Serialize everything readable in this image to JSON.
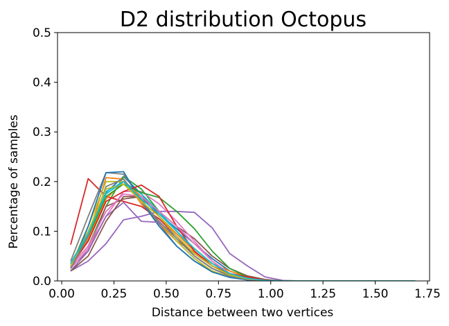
{
  "chart_data": {
    "type": "line",
    "title": "D2 distribution Octopus",
    "xlabel": "Distance between two vertices",
    "ylabel": "Percentage of samples",
    "xlim": [
      -0.02,
      1.76
    ],
    "ylim": [
      0,
      0.5
    ],
    "xticks": [
      0.0,
      0.25,
      0.5,
      0.75,
      1.0,
      1.25,
      1.5,
      1.75
    ],
    "xtick_labels": [
      "0.00",
      "0.25",
      "0.50",
      "0.75",
      "1.00",
      "1.25",
      "1.50",
      "1.75"
    ],
    "yticks": [
      0.0,
      0.1,
      0.2,
      0.3,
      0.4,
      0.5
    ],
    "ytick_labels": [
      "0.0",
      "0.1",
      "0.2",
      "0.3",
      "0.4",
      "0.5"
    ],
    "grid": false,
    "x": [
      0.043,
      0.127,
      0.212,
      0.296,
      0.381,
      0.466,
      0.55,
      0.635,
      0.72,
      0.804,
      0.889,
      0.973,
      1.058,
      1.142,
      1.227,
      1.312,
      1.396,
      1.481,
      1.565,
      1.65,
      1.692
    ],
    "series": [
      {
        "color": "#1f77b4",
        "values": [
          0.035,
          0.1,
          0.178,
          0.21,
          0.175,
          0.135,
          0.105,
          0.075,
          0.045,
          0.02,
          0.008,
          0.002,
          0,
          0,
          0,
          0,
          0,
          0,
          0,
          0,
          0
        ]
      },
      {
        "color": "#ff7f0e",
        "values": [
          0.025,
          0.09,
          0.208,
          0.205,
          0.155,
          0.115,
          0.08,
          0.058,
          0.035,
          0.02,
          0.008,
          0.002,
          0,
          0,
          0,
          0,
          0,
          0,
          0,
          0,
          0
        ]
      },
      {
        "color": "#2ca02c",
        "values": [
          0.03,
          0.07,
          0.15,
          0.21,
          0.185,
          0.14,
          0.1,
          0.065,
          0.035,
          0.015,
          0.005,
          0.001,
          0,
          0,
          0,
          0,
          0,
          0,
          0,
          0,
          0
        ]
      },
      {
        "color": "#d62728",
        "values": [
          0.073,
          0.206,
          0.17,
          0.16,
          0.15,
          0.125,
          0.09,
          0.055,
          0.03,
          0.012,
          0.004,
          0.001,
          0,
          0,
          0,
          0,
          0,
          0,
          0,
          0,
          0
        ]
      },
      {
        "color": "#9467bd",
        "values": [
          0.02,
          0.04,
          0.075,
          0.123,
          0.13,
          0.14,
          0.14,
          0.138,
          0.107,
          0.055,
          0.03,
          0.008,
          0.001,
          0,
          0,
          0,
          0,
          0,
          0,
          0,
          0
        ]
      },
      {
        "color": "#8c564b",
        "values": [
          0.028,
          0.06,
          0.15,
          0.165,
          0.17,
          0.14,
          0.11,
          0.085,
          0.05,
          0.025,
          0.01,
          0.003,
          0,
          0,
          0,
          0,
          0,
          0,
          0,
          0,
          0
        ]
      },
      {
        "color": "#e377c2",
        "values": [
          0.025,
          0.065,
          0.13,
          0.18,
          0.18,
          0.155,
          0.12,
          0.08,
          0.04,
          0.015,
          0.005,
          0.001,
          0,
          0,
          0,
          0,
          0,
          0,
          0,
          0,
          0
        ]
      },
      {
        "color": "#7f7f7f",
        "values": [
          0.04,
          0.13,
          0.218,
          0.215,
          0.165,
          0.115,
          0.07,
          0.04,
          0.02,
          0.008,
          0.003,
          0.001,
          0,
          0,
          0,
          0,
          0,
          0,
          0,
          0,
          0
        ]
      },
      {
        "color": "#bcbd22",
        "values": [
          0.03,
          0.11,
          0.2,
          0.2,
          0.16,
          0.12,
          0.08,
          0.045,
          0.02,
          0.008,
          0.002,
          0,
          0,
          0,
          0,
          0,
          0,
          0,
          0,
          0,
          0
        ]
      },
      {
        "color": "#17becf",
        "values": [
          0.03,
          0.085,
          0.18,
          0.2,
          0.175,
          0.14,
          0.1,
          0.06,
          0.03,
          0.012,
          0.004,
          0.001,
          0,
          0,
          0,
          0,
          0,
          0,
          0,
          0,
          0
        ]
      },
      {
        "color": "#1f77b4",
        "values": [
          0.025,
          0.11,
          0.218,
          0.22,
          0.16,
          0.11,
          0.07,
          0.04,
          0.018,
          0.007,
          0.002,
          0,
          0,
          0,
          0,
          0,
          0,
          0,
          0,
          0,
          0
        ]
      },
      {
        "color": "#ff7f0e",
        "values": [
          0.03,
          0.085,
          0.165,
          0.2,
          0.17,
          0.13,
          0.095,
          0.06,
          0.03,
          0.012,
          0.004,
          0.001,
          0,
          0,
          0,
          0,
          0,
          0,
          0,
          0,
          0
        ]
      },
      {
        "color": "#2ca02c",
        "values": [
          0.035,
          0.09,
          0.17,
          0.195,
          0.178,
          0.168,
          0.14,
          0.105,
          0.06,
          0.025,
          0.008,
          0.002,
          0,
          0,
          0,
          0,
          0,
          0,
          0,
          0,
          0
        ]
      },
      {
        "color": "#d62728",
        "values": [
          0.03,
          0.08,
          0.16,
          0.18,
          0.193,
          0.17,
          0.11,
          0.06,
          0.03,
          0.015,
          0.008,
          0.002,
          0,
          0,
          0,
          0,
          0,
          0,
          0,
          0,
          0
        ]
      },
      {
        "color": "#9467bd",
        "values": [
          0.02,
          0.06,
          0.13,
          0.158,
          0.12,
          0.118,
          0.09,
          0.05,
          0.025,
          0.01,
          0.003,
          0.001,
          0,
          0,
          0,
          0,
          0,
          0,
          0,
          0,
          0
        ]
      },
      {
        "color": "#8c564b",
        "values": [
          0.02,
          0.05,
          0.12,
          0.17,
          0.17,
          0.13,
          0.09,
          0.05,
          0.025,
          0.01,
          0.003,
          0.001,
          0,
          0,
          0,
          0,
          0,
          0,
          0,
          0,
          0
        ]
      },
      {
        "color": "#e377c2",
        "values": [
          0.03,
          0.07,
          0.14,
          0.175,
          0.17,
          0.14,
          0.11,
          0.075,
          0.04,
          0.015,
          0.004,
          0.001,
          0,
          0,
          0,
          0,
          0,
          0,
          0,
          0,
          0
        ]
      },
      {
        "color": "#7f7f7f",
        "values": [
          0.025,
          0.09,
          0.19,
          0.205,
          0.16,
          0.12,
          0.085,
          0.05,
          0.025,
          0.01,
          0.003,
          0.001,
          0,
          0,
          0,
          0,
          0,
          0,
          0,
          0,
          0
        ]
      },
      {
        "color": "#bcbd22",
        "values": [
          0.03,
          0.1,
          0.185,
          0.195,
          0.16,
          0.13,
          0.09,
          0.055,
          0.03,
          0.012,
          0.004,
          0.001,
          0,
          0,
          0,
          0,
          0,
          0,
          0,
          0,
          0
        ]
      },
      {
        "color": "#17becf",
        "values": [
          0.035,
          0.095,
          0.175,
          0.2,
          0.165,
          0.135,
          0.1,
          0.065,
          0.035,
          0.015,
          0.005,
          0.001,
          0,
          0,
          0,
          0,
          0,
          0,
          0,
          0,
          0
        ]
      }
    ]
  }
}
